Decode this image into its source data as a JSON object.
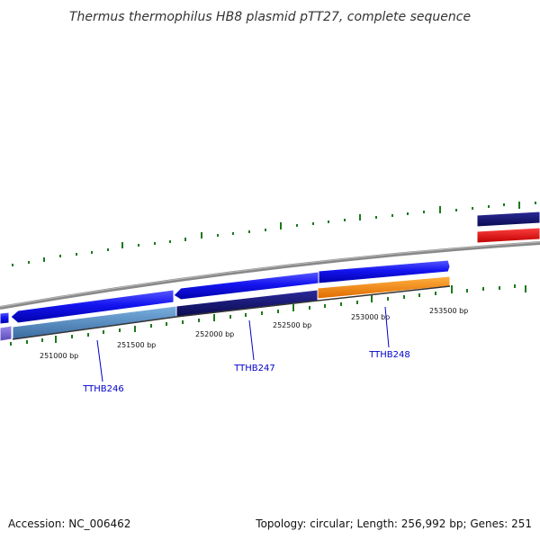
{
  "title": "Thermus thermophilus HB8 plasmid pTT27, complete sequence",
  "footer": {
    "accession": "Accession: NC_006462",
    "summary": "Topology: circular; Length: 256,992 bp; Genes: 251"
  },
  "tick_labels": [
    "251000 bp",
    "251500 bp",
    "252000 bp",
    "252500 bp",
    "253000 bp",
    "253500 bp"
  ],
  "genes": [
    {
      "name": "TTHB246",
      "color": "#0000ee"
    },
    {
      "name": "TTHB247",
      "color": "#0000ee"
    },
    {
      "name": "TTHB248",
      "color": "#0000ee"
    }
  ],
  "colors": {
    "backbone": "#888888",
    "cds_blue": "#1111ee",
    "cds_navy": "#101070",
    "cds_steel": "#4a80b8",
    "cds_orange": "#ff8800",
    "cds_red": "#ee0000",
    "cds_purple": "#6a5acd",
    "tick_green": "#1a7a1a"
  }
}
